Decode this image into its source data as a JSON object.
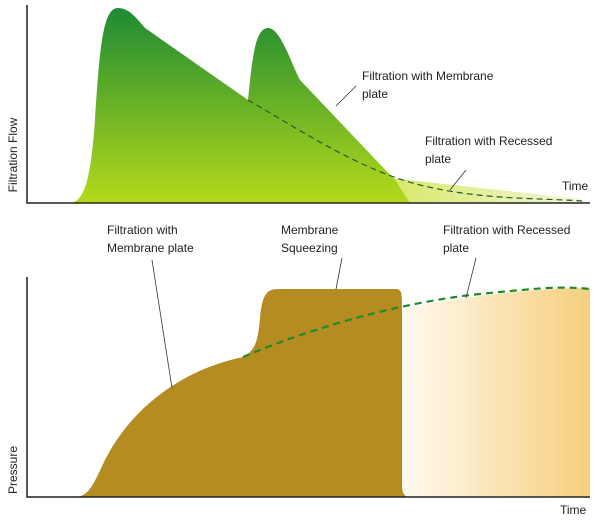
{
  "top_panel": {
    "y_label": "Filtration Flow",
    "x_label": "Time",
    "annotations": [
      {
        "lines": [
          "Filtration with Membrane",
          "plate"
        ]
      },
      {
        "lines": [
          "Filtration with Recessed",
          "plate"
        ]
      }
    ]
  },
  "bottom_panel": {
    "y_label": "Pressure",
    "x_label": "Time",
    "annotations": [
      {
        "lines": [
          "Filtration with",
          "Membrane plate"
        ]
      },
      {
        "lines": [
          "Membrane",
          "Squeezing"
        ]
      },
      {
        "lines": [
          "Filtration with Recessed",
          "plate"
        ]
      }
    ]
  }
}
